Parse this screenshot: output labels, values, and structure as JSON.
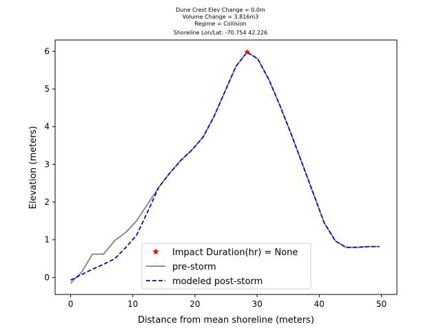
{
  "chart_data": {
    "type": "line",
    "title_lines": [
      "Dune Crest Elev Change = 0.0m",
      "Volume Change = 3.816m3",
      "Regime = Collision",
      "Shoreline Lon/Lat: -70.754 42.226"
    ],
    "xlabel": "Distance from mean shoreline (meters)",
    "ylabel": "Elevation (meters)",
    "xlim": [
      -2.5,
      52.5
    ],
    "ylim": [
      -0.45,
      6.3
    ],
    "xticks": [
      0,
      10,
      20,
      30,
      40,
      50
    ],
    "yticks": [
      0,
      1,
      2,
      3,
      4,
      5,
      6
    ],
    "legend_position": "lower center",
    "series": [
      {
        "name": "pre-storm",
        "style": "solid",
        "color": "#808080",
        "x": [
          0,
          1.8,
          3.5,
          5.3,
          7.1,
          8.9,
          10.6,
          12.4,
          14.2,
          16.0,
          17.7,
          19.5,
          21.3,
          23.0,
          24.8,
          26.6,
          28.4,
          30.1,
          31.9,
          33.7,
          35.5,
          37.2,
          39.0,
          40.8,
          42.6,
          44.3,
          46.1,
          47.9,
          49.7
        ],
        "y": [
          -0.15,
          0.15,
          0.62,
          0.62,
          0.98,
          1.2,
          1.5,
          1.95,
          2.4,
          2.78,
          3.1,
          3.38,
          3.72,
          4.25,
          4.92,
          5.6,
          5.98,
          5.8,
          5.25,
          4.55,
          3.8,
          3.05,
          2.25,
          1.45,
          0.97,
          0.8,
          0.8,
          0.82,
          0.82
        ]
      },
      {
        "name": "modeled post-storm",
        "style": "dashed",
        "color": "#0000ff",
        "x": [
          0,
          1.8,
          3.5,
          5.3,
          7.1,
          8.9,
          10.6,
          12.4,
          14.2,
          16.0,
          17.7,
          19.5,
          21.3,
          23.0,
          24.8,
          26.6,
          28.4,
          30.1,
          31.9,
          33.7,
          35.5,
          37.2,
          39.0,
          40.8,
          42.6,
          44.3,
          46.1,
          47.9,
          49.7
        ],
        "y": [
          -0.07,
          0.08,
          0.22,
          0.35,
          0.5,
          0.8,
          1.12,
          1.75,
          2.4,
          2.78,
          3.1,
          3.38,
          3.72,
          4.25,
          4.92,
          5.6,
          5.98,
          5.8,
          5.25,
          4.55,
          3.8,
          3.05,
          2.25,
          1.45,
          0.97,
          0.8,
          0.8,
          0.82,
          0.82
        ]
      }
    ],
    "markers": [
      {
        "name": "Impact Duration(hr) = None",
        "symbol": "star",
        "color": "#ff0000",
        "x": 28.4,
        "y": 5.98
      }
    ]
  }
}
